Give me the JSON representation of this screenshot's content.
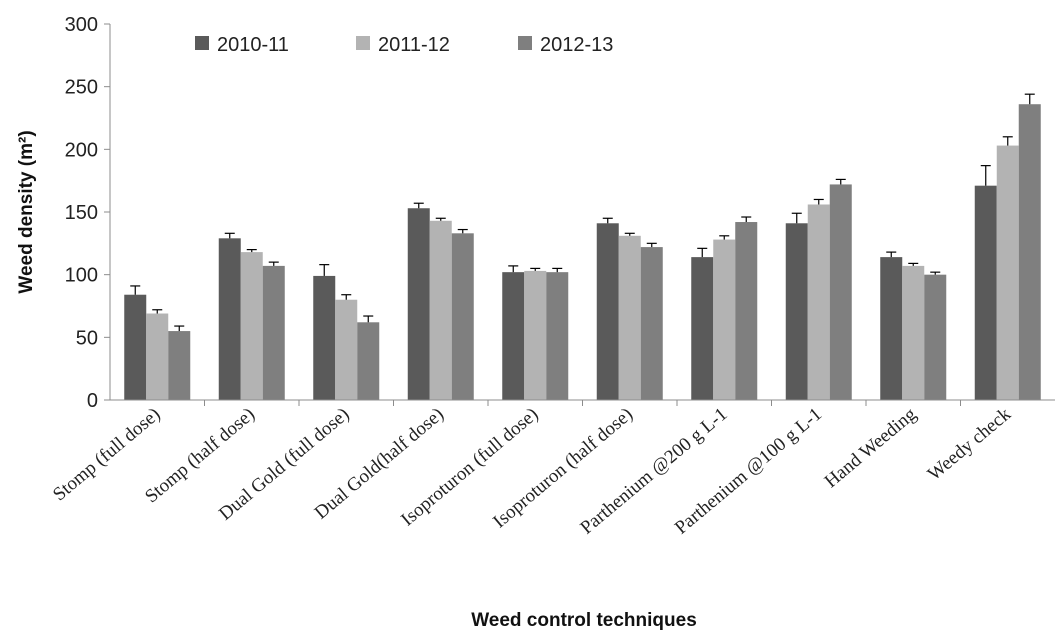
{
  "chart_data": {
    "type": "bar",
    "xlabel": "Weed control techniques",
    "ylabel": "Weed density (m²)",
    "ylim": [
      0,
      300
    ],
    "yticks": [
      0,
      50,
      100,
      150,
      200,
      250,
      300
    ],
    "grid": false,
    "legend": "top",
    "categories": [
      "Stomp (full dose)",
      "Stomp  (half dose)",
      "Dual Gold (full dose)",
      "Dual Gold(half dose)",
      "Isoproturon (full dose)",
      "Isoproturon  (half dose)",
      "Parthenium @200 g L-1",
      "Parthenium @100 g L-1",
      "Hand Weeding",
      "Weedy check"
    ],
    "series": [
      {
        "name": "2010-11",
        "color": "#5a5a5a",
        "values": [
          84,
          129,
          99,
          153,
          102,
          141,
          114,
          141,
          114,
          171
        ],
        "errors": [
          7,
          4,
          9,
          4,
          5,
          4,
          7,
          8,
          4,
          16
        ]
      },
      {
        "name": "2011-12",
        "color": "#b3b3b3",
        "values": [
          69,
          118,
          80,
          143,
          103,
          131,
          128,
          156,
          107,
          203
        ],
        "errors": [
          3,
          2,
          4,
          2,
          2,
          2,
          3,
          4,
          2,
          7
        ]
      },
      {
        "name": "2012-13",
        "color": "#7f7f7f",
        "values": [
          55,
          107,
          62,
          133,
          102,
          122,
          142,
          172,
          100,
          236
        ],
        "errors": [
          4,
          3,
          5,
          3,
          3,
          3,
          4,
          4,
          2,
          8
        ]
      }
    ]
  }
}
